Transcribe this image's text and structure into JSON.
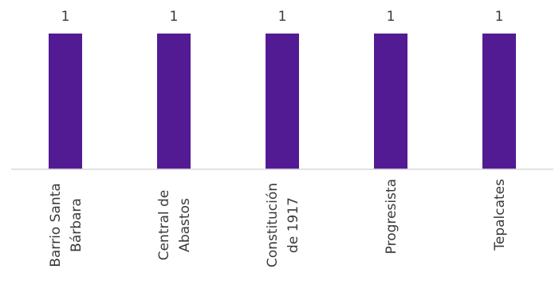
{
  "chart_data": {
    "type": "bar",
    "title": "",
    "xlabel": "",
    "ylabel": "",
    "categories": [
      [
        "Barrio Santa",
        "Bárbara"
      ],
      [
        "Central de",
        "Abastos"
      ],
      [
        "Constitución",
        "de 1917"
      ],
      [
        "Progresista"
      ],
      [
        "Tepalcates"
      ]
    ],
    "values": [
      1,
      1,
      1,
      1,
      1
    ],
    "ylim": [
      0,
      1
    ],
    "grid": false,
    "legend": "none",
    "bar_color": "#521b93",
    "axis_color": "#d9d9d9",
    "text_color": "#3a3a3a"
  }
}
